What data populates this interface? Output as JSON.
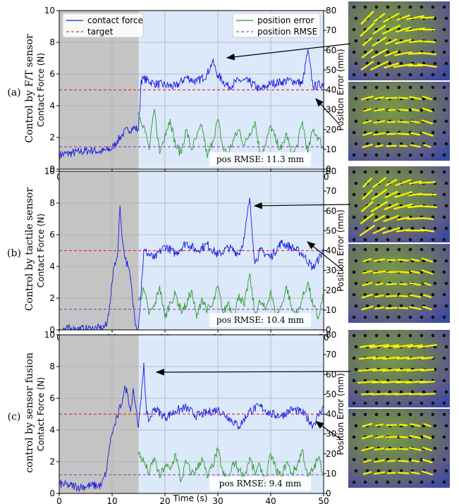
{
  "x_axis_label": "Time (s)",
  "colors": {
    "contact_force": "#1a1adc",
    "target": "#e03030",
    "position_error": "#2a9a2a",
    "position_rmse": "#9a4cc0",
    "gray_region": "#c4c4c4",
    "blue_region": "#dbe9fb"
  },
  "legend": {
    "contact_force": "contact force",
    "target": "target",
    "position_error": "position error",
    "position_rmse": "position RMSE"
  },
  "chart_data": [
    {
      "type": "line",
      "row_label": "(a)",
      "row_title": "Control by F/T sensor",
      "ylabel_left": "Contact Force (N)",
      "ylabel_right": "Position Error (mm)",
      "x_ticks": [
        0,
        10,
        20,
        30,
        40,
        50
      ],
      "y_ticks_left": [
        0,
        2,
        4,
        6,
        8,
        10
      ],
      "y_ticks_right": [
        0,
        10,
        20,
        30,
        40,
        50,
        60,
        70,
        80
      ],
      "xlim": [
        0,
        50
      ],
      "ylim_left": [
        0,
        10
      ],
      "ylim_right": [
        0,
        80
      ],
      "shaded_regions": [
        {
          "from": 0,
          "to": 15,
          "color": "gray"
        },
        {
          "from": 15,
          "to": 50,
          "color": "light-blue"
        }
      ],
      "target_force": 5.0,
      "position_rmse_mm": 11.3,
      "rmse_label": "pos RMSE: 11.3 mm",
      "series": [
        {
          "name": "contact force",
          "axis": "left",
          "x": [
            0,
            2,
            4,
            6,
            8,
            10,
            11,
            12,
            13,
            14,
            15,
            15.5,
            16,
            18,
            20,
            22,
            24,
            26,
            28,
            29,
            30,
            32,
            34,
            36,
            38,
            40,
            42,
            44,
            46,
            47,
            48,
            50
          ],
          "values": [
            0.9,
            1.0,
            1.1,
            1.2,
            1.1,
            1.3,
            1.8,
            2.2,
            2.5,
            2.6,
            2.5,
            5.6,
            5.7,
            5.4,
            5.3,
            5.2,
            5.8,
            5.5,
            6.0,
            6.8,
            5.9,
            5.2,
            5.6,
            5.5,
            5.0,
            5.4,
            5.5,
            5.6,
            5.4,
            7.5,
            5.2,
            5.4
          ]
        },
        {
          "name": "position error",
          "axis": "right",
          "x": [
            15,
            16,
            17,
            18,
            19,
            20,
            21,
            22,
            23,
            24,
            25,
            26,
            27,
            28,
            29,
            30,
            31,
            32,
            33,
            34,
            35,
            36,
            37,
            38,
            39,
            40,
            41,
            42,
            43,
            44,
            45,
            46,
            47,
            48,
            49,
            50
          ],
          "values": [
            28,
            22,
            10,
            30,
            8,
            18,
            25,
            12,
            8,
            20,
            10,
            16,
            22,
            6,
            14,
            25,
            10,
            8,
            15,
            20,
            12,
            18,
            24,
            8,
            12,
            22,
            14,
            10,
            18,
            6,
            12,
            24,
            8,
            20,
            16,
            10
          ]
        },
        {
          "name": "position RMSE",
          "axis": "right",
          "constant": 11.3
        }
      ]
    },
    {
      "type": "line",
      "row_label": "(b)",
      "row_title": "Control by tactile sensor",
      "ylabel_left": "Contact Force (N)",
      "ylabel_right": "Position Error (mm)",
      "x_ticks": [
        0,
        10,
        20,
        30,
        40,
        50
      ],
      "y_ticks_left": [
        0,
        2,
        4,
        6,
        8,
        10
      ],
      "y_ticks_right": [
        0,
        10,
        20,
        30,
        40,
        50,
        60,
        70,
        80
      ],
      "xlim": [
        0,
        50
      ],
      "ylim_left": [
        0,
        10
      ],
      "ylim_right": [
        0,
        80
      ],
      "shaded_regions": [
        {
          "from": 0,
          "to": 15,
          "color": "gray"
        },
        {
          "from": 15,
          "to": 50,
          "color": "light-blue"
        }
      ],
      "target_force": 5.0,
      "position_rmse_mm": 10.4,
      "rmse_label": "pos RMSE: 10.4 mm",
      "series": [
        {
          "name": "contact force",
          "axis": "left",
          "x": [
            0,
            5,
            8,
            9,
            9.5,
            10,
            10.5,
            11,
            11.5,
            12,
            12.5,
            13,
            13.5,
            14,
            14.5,
            15,
            16,
            18,
            20,
            22,
            24,
            26,
            28,
            30,
            32,
            34,
            35,
            36,
            37,
            38,
            40,
            42,
            44,
            46,
            48,
            50
          ],
          "values": [
            0.05,
            0.05,
            0.1,
            0.3,
            1.5,
            3.0,
            4.2,
            4.6,
            7.8,
            5.5,
            4.5,
            4.0,
            3.2,
            1.5,
            0.3,
            0.2,
            5.0,
            4.5,
            5.3,
            4.8,
            5.5,
            5.0,
            5.4,
            4.7,
            5.2,
            4.8,
            5.8,
            8.3,
            4.2,
            5.0,
            4.6,
            5.5,
            5.2,
            4.8,
            3.9,
            5.0
          ]
        },
        {
          "name": "position error",
          "axis": "right",
          "x": [
            15,
            16,
            17,
            18,
            19,
            20,
            21,
            22,
            23,
            24,
            25,
            26,
            27,
            28,
            29,
            30,
            31,
            32,
            33,
            34,
            35,
            36,
            37,
            38,
            39,
            40,
            41,
            42,
            43,
            44,
            45,
            46,
            47,
            48,
            49,
            50
          ],
          "values": [
            15,
            20,
            8,
            12,
            22,
            6,
            14,
            18,
            10,
            12,
            20,
            6,
            16,
            10,
            12,
            22,
            8,
            14,
            6,
            18,
            12,
            28,
            8,
            14,
            10,
            20,
            6,
            12,
            22,
            10,
            8,
            16,
            24,
            12,
            6,
            18
          ]
        },
        {
          "name": "position RMSE",
          "axis": "right",
          "constant": 10.4
        }
      ]
    },
    {
      "type": "line",
      "row_label": "(c)",
      "row_title": "control by sensor fusion",
      "ylabel_left": "Contact Force (N)",
      "ylabel_right": "Position Error (mm)",
      "x_ticks": [
        0,
        10,
        20,
        30,
        40,
        50
      ],
      "y_ticks_left": [
        0,
        2,
        4,
        6,
        8,
        10
      ],
      "y_ticks_right": [
        0,
        10,
        20,
        30,
        40,
        50,
        60,
        70,
        80
      ],
      "xlim": [
        0,
        50
      ],
      "ylim_left": [
        0,
        10
      ],
      "ylim_right": [
        0,
        80
      ],
      "shaded_regions": [
        {
          "from": 0,
          "to": 15,
          "color": "gray"
        },
        {
          "from": 15,
          "to": 50,
          "color": "light-blue"
        }
      ],
      "target_force": 5.0,
      "position_rmse_mm": 9.4,
      "rmse_label": "pos RMSE: 9.4 mm",
      "series": [
        {
          "name": "contact force",
          "axis": "left",
          "x": [
            0,
            2,
            4,
            6,
            8,
            9,
            9.5,
            10,
            11,
            12,
            12.5,
            13,
            13.5,
            14,
            14.5,
            15,
            15.5,
            16,
            16.5,
            17,
            18,
            20,
            22,
            24,
            26,
            28,
            30,
            32,
            34,
            36,
            38,
            40,
            42,
            44,
            46,
            48,
            50
          ],
          "values": [
            0.6,
            0.5,
            0.4,
            0.5,
            0.5,
            1.5,
            3.0,
            3.8,
            4.8,
            6.0,
            6.7,
            6.2,
            5.2,
            6.6,
            5.4,
            4.2,
            6.0,
            8.2,
            5.0,
            4.6,
            5.4,
            4.8,
            5.2,
            5.4,
            4.9,
            5.1,
            5.3,
            4.8,
            4.2,
            5.2,
            5.5,
            5.0,
            4.9,
            5.3,
            5.1,
            4.3,
            5.5
          ]
        },
        {
          "name": "position error",
          "axis": "right",
          "x": [
            15,
            16,
            17,
            18,
            19,
            20,
            21,
            22,
            23,
            24,
            25,
            26,
            27,
            28,
            29,
            30,
            31,
            32,
            33,
            34,
            35,
            36,
            37,
            38,
            39,
            40,
            41,
            42,
            43,
            44,
            45,
            46,
            47,
            48,
            49,
            50
          ],
          "values": [
            20,
            16,
            10,
            18,
            8,
            14,
            12,
            20,
            6,
            16,
            10,
            12,
            18,
            8,
            14,
            22,
            10,
            6,
            16,
            12,
            8,
            18,
            10,
            14,
            6,
            20,
            12,
            8,
            16,
            10,
            14,
            22,
            8,
            12,
            18,
            10
          ]
        },
        {
          "name": "position RMSE",
          "axis": "right",
          "constant": 9.4
        }
      ]
    }
  ],
  "inset_images": [
    {
      "panel": "a-top",
      "arrow_target": "force peak"
    },
    {
      "panel": "a-bottom",
      "arrow_target": "force dip"
    },
    {
      "panel": "b-top",
      "arrow_target": "force peak"
    },
    {
      "panel": "b-bottom",
      "arrow_target": "force dip"
    },
    {
      "panel": "c-top",
      "arrow_target": "force peak"
    },
    {
      "panel": "c-bottom",
      "arrow_target": "force dip"
    }
  ]
}
